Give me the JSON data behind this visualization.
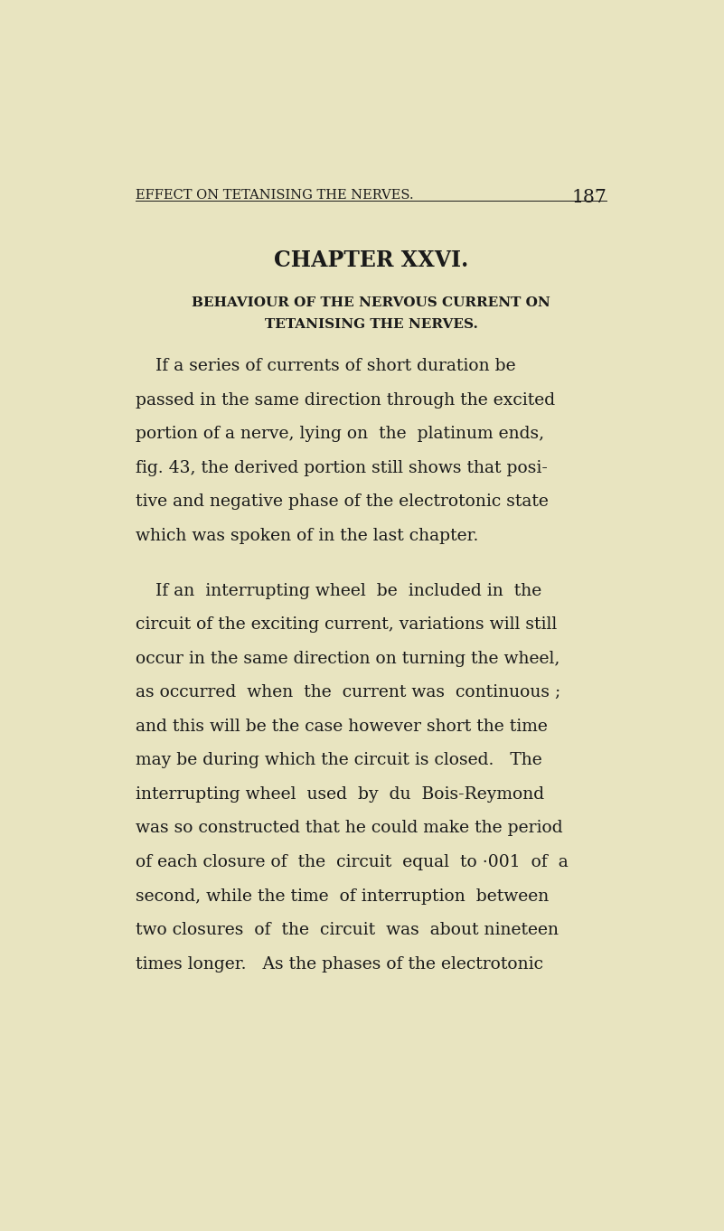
{
  "background_color": "#e8e4c0",
  "page_width": 8.01,
  "page_height": 13.62,
  "header_text": "EFFECT ON TETANISING THE NERVES.",
  "header_page_num": "187",
  "chapter_title": "CHAPTER XXVI.",
  "subtitle_line1": "BEHAVIOUR OF THE NERVOUS CURRENT ON",
  "subtitle_line2": "TETANISING THE NERVES.",
  "text_color": "#1a1a1a",
  "header_fontsize": 10.5,
  "chapter_fontsize": 17,
  "subtitle_fontsize": 11,
  "body_fontsize": 13.5,
  "para1_lines": [
    "If a series of currents of short duration be",
    "passed in the same direction through the excited",
    "portion of a nerve, lying on  the  platinum ends,",
    "fig. 43, the derived portion still shows that posi-",
    "tive and negative phase of the electrotonic state",
    "which was spoken of in the last chapter."
  ],
  "para2_lines": [
    "If an  interrupting wheel  be  included in  the",
    "circuit of the exciting current, variations will still",
    "occur in the same direction on turning the wheel,",
    "as occurred  when  the  current was  continuous ;",
    "and this will be the case however short the time",
    "may be during which the circuit is closed.   The",
    "interrupting wheel  used  by  du  Bois-Reymond",
    "was so constructed that he could make the period",
    "of each closure of  the  circuit  equal  to ·001  of  a",
    "second, while the time  of interruption  between",
    "two closures  of  the  circuit  was  about nineteen",
    "times longer.   As the phases of the electrotonic"
  ]
}
